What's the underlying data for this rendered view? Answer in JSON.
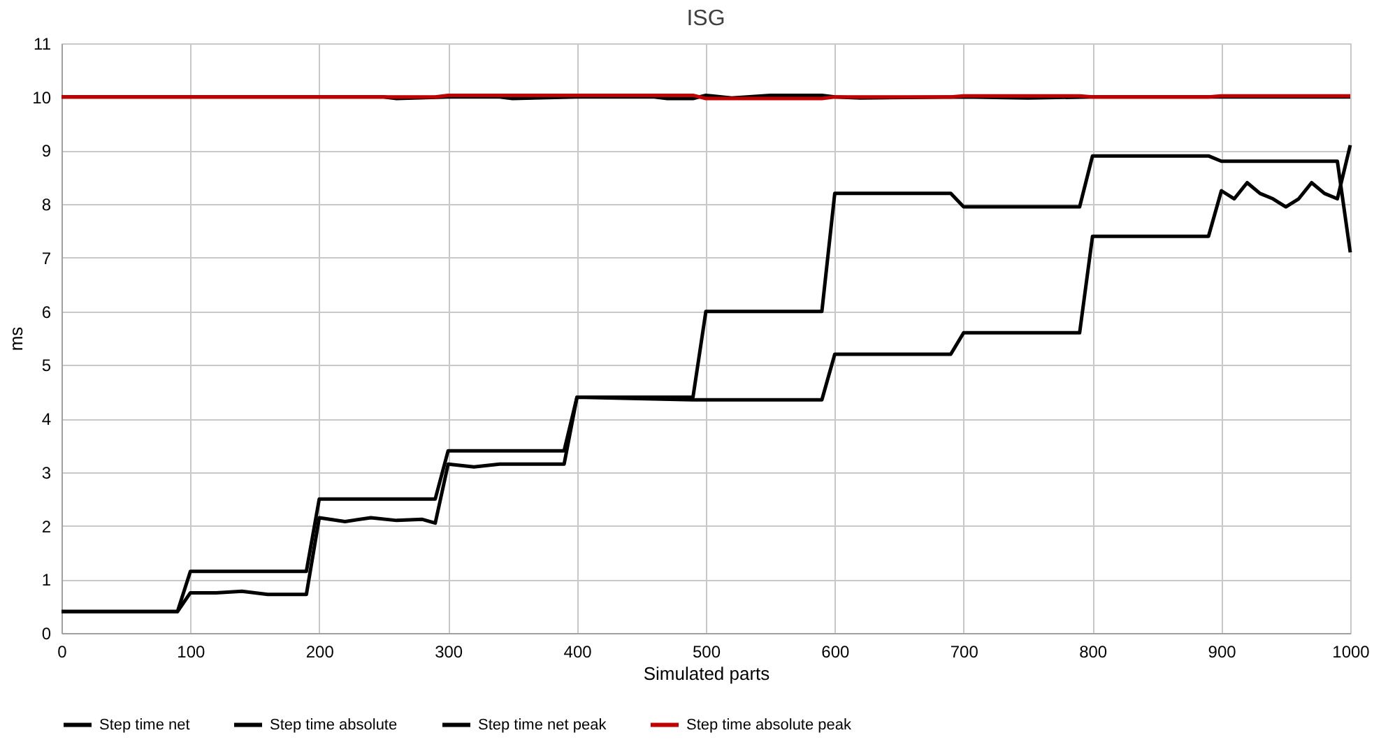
{
  "chart_data": {
    "type": "line",
    "title": "ISG",
    "xlabel": "Simulated parts",
    "ylabel": "ms",
    "xlim": [
      0,
      1000
    ],
    "xticks": [
      0,
      100,
      200,
      300,
      400,
      500,
      600,
      700,
      800,
      900,
      1000
    ],
    "ylim": [
      0,
      11
    ],
    "yticks": [
      0,
      1,
      2,
      3,
      4,
      5,
      6,
      7,
      8,
      9,
      10,
      11
    ],
    "grid": true,
    "legend": "bottom",
    "line_style": "solid",
    "marker": "none",
    "series": [
      {
        "name": "Step time net",
        "color": "#000000",
        "x": [
          0,
          90,
          100,
          120,
          140,
          160,
          190,
          200,
          220,
          240,
          260,
          280,
          290,
          300,
          320,
          340,
          390,
          400,
          490,
          590,
          600,
          690,
          700,
          790,
          800,
          890,
          900,
          910,
          920,
          930,
          940,
          950,
          960,
          970,
          980,
          990,
          1000
        ],
        "values": [
          0.4,
          0.4,
          0.75,
          0.75,
          0.78,
          0.72,
          0.72,
          2.15,
          2.08,
          2.15,
          2.1,
          2.12,
          2.05,
          3.15,
          3.1,
          3.15,
          3.15,
          4.4,
          4.35,
          4.35,
          5.2,
          5.2,
          5.6,
          5.6,
          7.4,
          7.4,
          8.25,
          8.1,
          8.4,
          8.2,
          8.1,
          7.95,
          8.1,
          8.4,
          8.2,
          8.1,
          9.1
        ]
      },
      {
        "name": "Step time absolute",
        "color": "#000000",
        "x": [
          0,
          90,
          100,
          190,
          200,
          290,
          300,
          390,
          400,
          490,
          500,
          590,
          600,
          690,
          700,
          790,
          800,
          890,
          900,
          990,
          1000
        ],
        "values": [
          0.4,
          0.4,
          1.15,
          1.15,
          2.5,
          2.5,
          3.4,
          3.4,
          4.4,
          4.4,
          6.0,
          6.0,
          8.2,
          8.2,
          7.95,
          7.95,
          8.9,
          8.9,
          8.8,
          8.8,
          7.1
        ]
      },
      {
        "name": "Step time net peak",
        "color": "#000000",
        "x": [
          0,
          250,
          260,
          300,
          340,
          350,
          400,
          460,
          470,
          490,
          500,
          520,
          550,
          590,
          600,
          620,
          700,
          750,
          800,
          1000
        ],
        "values": [
          10.0,
          10.0,
          9.97,
          10.0,
          10.0,
          9.97,
          10.0,
          10.0,
          9.97,
          9.97,
          10.03,
          9.98,
          10.03,
          10.03,
          10.0,
          9.98,
          10.0,
          9.98,
          10.0,
          10.0
        ]
      },
      {
        "name": "Step time absolute peak",
        "color": "#c00000",
        "x": [
          0,
          290,
          300,
          490,
          500,
          590,
          600,
          690,
          700,
          790,
          800,
          890,
          900,
          1000
        ],
        "values": [
          10.0,
          10.0,
          10.03,
          10.03,
          9.97,
          9.97,
          10.0,
          10.0,
          10.02,
          10.02,
          10.0,
          10.0,
          10.02,
          10.02
        ]
      }
    ]
  }
}
